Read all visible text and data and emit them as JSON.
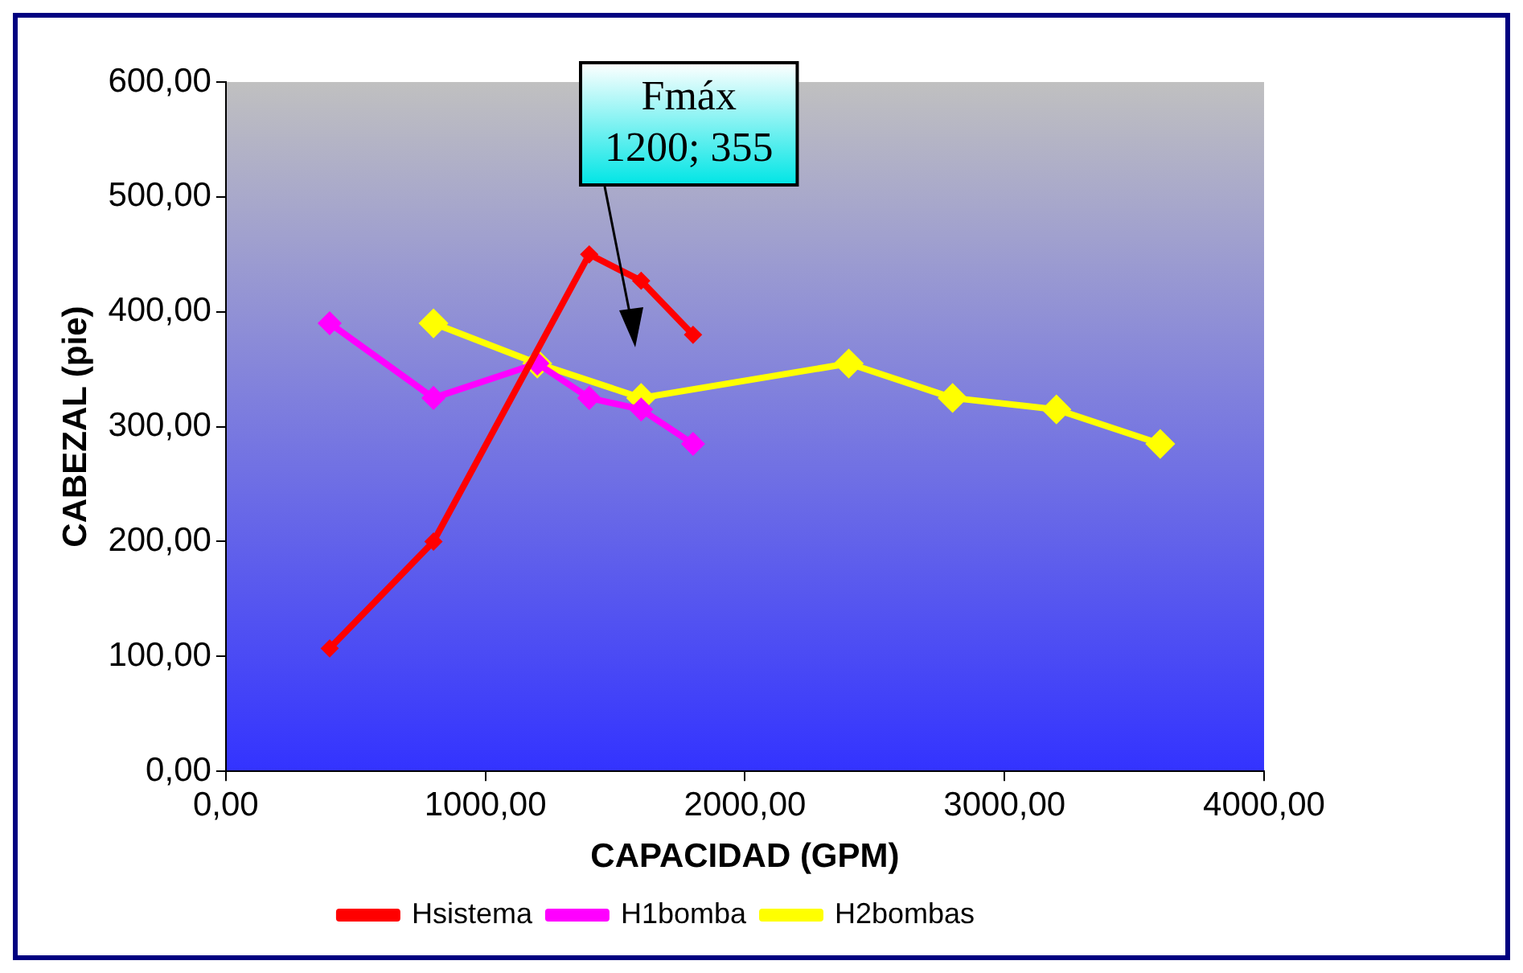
{
  "chart_data": {
    "type": "line",
    "xlabel": "CAPACIDAD (GPM)",
    "ylabel": "CABEZAL (pie)",
    "xlim": [
      0,
      4000
    ],
    "ylim": [
      0,
      600
    ],
    "xticks": [
      {
        "value": 0,
        "label": "0,00"
      },
      {
        "value": 1000,
        "label": "1000,00"
      },
      {
        "value": 2000,
        "label": "2000,00"
      },
      {
        "value": 3000,
        "label": "3000,00"
      },
      {
        "value": 4000,
        "label": "4000,00"
      }
    ],
    "yticks": [
      {
        "value": 0,
        "label": "0,00"
      },
      {
        "value": 100,
        "label": "100,00"
      },
      {
        "value": 200,
        "label": "200,00"
      },
      {
        "value": 300,
        "label": "300,00"
      },
      {
        "value": 400,
        "label": "400,00"
      },
      {
        "value": 500,
        "label": "500,00"
      },
      {
        "value": 600,
        "label": "600,00"
      }
    ],
    "grid": false,
    "legend": "bottom",
    "marker": "diamond",
    "line_style": "solid",
    "annotations": [
      "Fmáx\n1200; 355"
    ],
    "series": [
      {
        "name": "Hsistema",
        "color": "#ff0000",
        "x": [
          400,
          800,
          1400,
          1600,
          1800
        ],
        "values": [
          107,
          200,
          450,
          427,
          380
        ]
      },
      {
        "name": "H1bomba",
        "color": "#ff00ff",
        "x": [
          400,
          800,
          1200,
          1400,
          1600,
          1800
        ],
        "values": [
          390,
          325,
          355,
          325,
          315,
          285
        ]
      },
      {
        "name": "H2bombas",
        "color": "#ffff00",
        "x": [
          800,
          1200,
          1600,
          2400,
          2800,
          3200,
          3600
        ],
        "values": [
          390,
          355,
          325,
          355,
          325,
          315,
          285
        ]
      }
    ]
  }
}
